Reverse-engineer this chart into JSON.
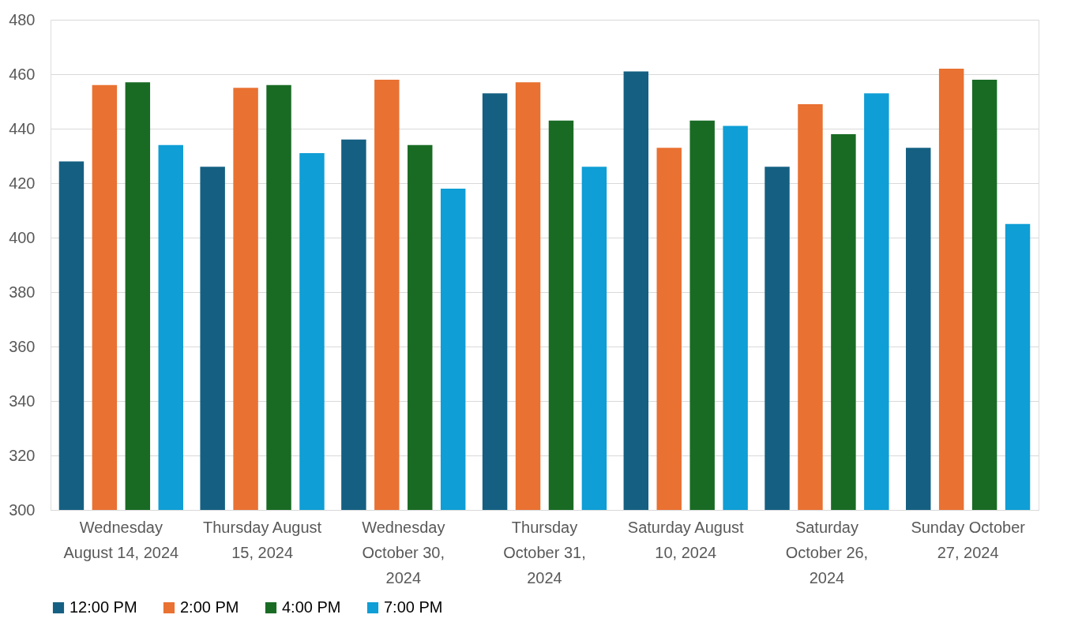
{
  "chart_data": {
    "type": "bar",
    "categories": [
      "Wednesday August 14, 2024",
      "Thursday August 15, 2024",
      "Wednesday October 30, 2024",
      "Thursday October 31, 2024",
      "Saturday August 10, 2024",
      "Saturday October 26, 2024",
      "Sunday October 27, 2024"
    ],
    "series": [
      {
        "name": "12:00 PM",
        "color": "#156082",
        "values": [
          428,
          426,
          436,
          453,
          461,
          426,
          433
        ]
      },
      {
        "name": "2:00 PM",
        "color": "#e97132",
        "values": [
          456,
          455,
          458,
          457,
          433,
          449,
          462
        ]
      },
      {
        "name": "4:00 PM",
        "color": "#196b24",
        "values": [
          457,
          456,
          434,
          443,
          443,
          438,
          458
        ]
      },
      {
        "name": "7:00 PM",
        "color": "#0f9ed5",
        "values": [
          434,
          431,
          418,
          426,
          441,
          453,
          405
        ]
      }
    ],
    "ylim": [
      300,
      480
    ],
    "yticks": [
      300,
      320,
      340,
      360,
      380,
      400,
      420,
      440,
      460,
      480
    ],
    "grid": "y",
    "legend": "bottom"
  }
}
